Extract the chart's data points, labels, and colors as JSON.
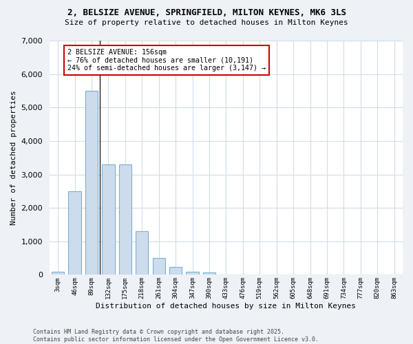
{
  "title_line1": "2, BELSIZE AVENUE, SPRINGFIELD, MILTON KEYNES, MK6 3LS",
  "title_line2": "Size of property relative to detached houses in Milton Keynes",
  "xlabel": "Distribution of detached houses by size in Milton Keynes",
  "ylabel": "Number of detached properties",
  "categories": [
    "3sqm",
    "46sqm",
    "89sqm",
    "132sqm",
    "175sqm",
    "218sqm",
    "261sqm",
    "304sqm",
    "347sqm",
    "390sqm",
    "433sqm",
    "476sqm",
    "519sqm",
    "562sqm",
    "605sqm",
    "648sqm",
    "691sqm",
    "734sqm",
    "777sqm",
    "820sqm",
    "863sqm"
  ],
  "values": [
    100,
    2500,
    5500,
    3300,
    3300,
    1300,
    500,
    225,
    100,
    60,
    0,
    0,
    0,
    0,
    0,
    0,
    0,
    0,
    0,
    0,
    0
  ],
  "bar_color": "#ccdcec",
  "bar_edge_color": "#7bafd4",
  "annotation_line1": "2 BELSIZE AVENUE: 156sqm",
  "annotation_line2": "← 76% of detached houses are smaller (10,191)",
  "annotation_line3": "24% of semi-detached houses are larger (3,147) →",
  "annotation_box_color": "#ffffff",
  "annotation_border_color": "#cc0000",
  "prop_line_xidx": 2.5,
  "ylim": [
    0,
    7000
  ],
  "yticks": [
    0,
    1000,
    2000,
    3000,
    4000,
    5000,
    6000,
    7000
  ],
  "plot_bg_color": "#ffffff",
  "fig_bg_color": "#eef2f7",
  "grid_color": "#d0dce8",
  "footer_line1": "Contains HM Land Registry data © Crown copyright and database right 2025.",
  "footer_line2": "Contains public sector information licensed under the Open Government Licence v3.0."
}
